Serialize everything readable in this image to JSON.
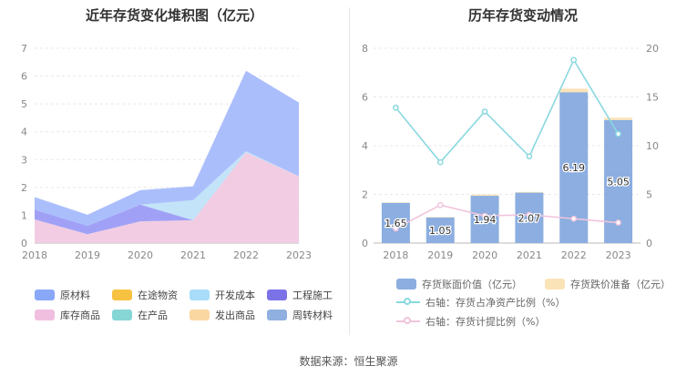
{
  "footer": {
    "source": "数据来源：恒生聚源"
  },
  "chart_data": [
    {
      "type": "area",
      "title": "近年存货变化堆积图（亿元）",
      "x": [
        "2018",
        "2019",
        "2020",
        "2021",
        "2022",
        "2023"
      ],
      "ylim": [
        0,
        7
      ],
      "yticks": [
        "0",
        "1",
        "2",
        "3",
        "4",
        "5",
        "6",
        "7"
      ],
      "legend_position": "bottom",
      "legend": [
        "原材料",
        "在途物资",
        "开发成本",
        "工程施工",
        "库存商品",
        "在产品",
        "发出商品",
        "周转材料"
      ],
      "legend_colors": [
        "#8aa8f8",
        "#f7c242",
        "#a8dcf8",
        "#7b72e8",
        "#f0bfe0",
        "#86d6d6",
        "#fad7a0",
        "#8fb0e0"
      ],
      "series": [
        {
          "name": "库存商品",
          "color": "#f0c9e0",
          "values": [
            0.85,
            0.32,
            0.78,
            0.82,
            3.25,
            2.4
          ]
        },
        {
          "name": "工程施工",
          "color": "#9b9cf5",
          "values": [
            0.35,
            0.3,
            0.6,
            0.0,
            0.0,
            0.0
          ]
        },
        {
          "name": "开发成本",
          "color": "#bfe2f8",
          "values": [
            0.0,
            0.0,
            0.0,
            0.72,
            0.05,
            0.0
          ]
        },
        {
          "name": "原材料",
          "color": "#a6bafc",
          "values": [
            0.45,
            0.4,
            0.52,
            0.5,
            2.89,
            2.65
          ]
        }
      ]
    },
    {
      "type": "bar",
      "title": "历年存货变动情况",
      "x": [
        "2018",
        "2019",
        "2020",
        "2021",
        "2022",
        "2023"
      ],
      "ylim_left": [
        0,
        8
      ],
      "yticks_left": [
        "0",
        "2",
        "4",
        "6",
        "8"
      ],
      "ylim_right": [
        0,
        20
      ],
      "yticks_right": [
        "0",
        "5",
        "10",
        "15",
        "20"
      ],
      "legend_position": "bottom",
      "series": [
        {
          "name": "存货账面价值（亿元）",
          "type": "bar",
          "axis": "left",
          "color": "#8caee0",
          "values": [
            1.65,
            1.05,
            1.94,
            2.07,
            6.19,
            5.05
          ],
          "labels": [
            "1.65",
            "1.05",
            "1.94",
            "2.07",
            "6.19",
            "5.05"
          ]
        },
        {
          "name": "存货跌价准备（亿元）",
          "type": "bar",
          "axis": "left",
          "color": "#fbe3b8",
          "values": [
            0.02,
            0.02,
            0.05,
            0.03,
            0.15,
            0.1
          ]
        },
        {
          "name": "右轴：存货占净资产比例（%）",
          "type": "line",
          "axis": "right",
          "color": "#8ad8e0",
          "values": [
            13.9,
            8.3,
            13.5,
            8.9,
            18.8,
            11.2
          ]
        },
        {
          "name": "右轴：存货计提比例（%）",
          "type": "line",
          "axis": "right",
          "color": "#f0c4dc",
          "values": [
            1.5,
            3.9,
            2.8,
            2.9,
            2.5,
            2.1
          ]
        }
      ]
    }
  ]
}
